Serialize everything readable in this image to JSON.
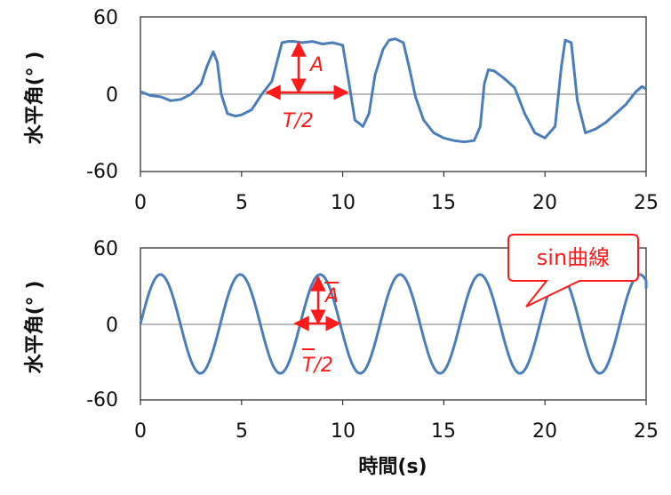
{
  "chart_data": [
    {
      "type": "line",
      "series_color": "#4a7ebb",
      "ylabel": "水平角(° )",
      "xlim": [
        0,
        25
      ],
      "ylim": [
        -60,
        60
      ],
      "xticks": [
        "0",
        "5",
        "10",
        "15",
        "20",
        "25"
      ],
      "yticks": [
        "60",
        "0",
        "-60"
      ],
      "annotation_color": "#ff1a1a",
      "annotations": {
        "amplitude": "A",
        "half_period": "T/2"
      },
      "series": [
        {
          "x": [
            0,
            0.5,
            1,
            1.5,
            2,
            2.5,
            3,
            3.3,
            3.6,
            3.8,
            4,
            4.3,
            4.7,
            5,
            5.5,
            6,
            6.5,
            7,
            7.3,
            7.6,
            8,
            8.5,
            9,
            9.5,
            10,
            10.3,
            10.6,
            11,
            11.3,
            11.6,
            12,
            12.3,
            12.6,
            13,
            13.3,
            13.6,
            14,
            14.5,
            15,
            15.5,
            16,
            16.5,
            16.8,
            17,
            17.2,
            17.5,
            18,
            18.5,
            19,
            19.5,
            20,
            20.5,
            20.8,
            21,
            21.3,
            21.6,
            22,
            22.5,
            23,
            23.5,
            24,
            24.5,
            24.8,
            25
          ],
          "y": [
            2,
            -1,
            -2,
            -5,
            -4,
            0,
            8,
            22,
            33,
            25,
            0,
            -15,
            -17,
            -16,
            -12,
            0,
            10,
            40,
            41,
            41,
            40,
            41,
            39,
            40,
            38,
            10,
            -20,
            -25,
            -15,
            15,
            35,
            42,
            43,
            40,
            20,
            -2,
            -20,
            -30,
            -34,
            -36,
            -37,
            -36,
            -25,
            8,
            19,
            18,
            12,
            5,
            -15,
            -30,
            -34,
            -25,
            20,
            42,
            40,
            -5,
            -30,
            -27,
            -22,
            -15,
            -8,
            2,
            6,
            4
          ]
        }
      ]
    },
    {
      "type": "line",
      "series_color": "#4a7ebb",
      "ylabel": "水平角(° )",
      "xlabel": "時間(s)",
      "xlim": [
        0,
        25
      ],
      "ylim": [
        -60,
        60
      ],
      "xticks": [
        "0",
        "5",
        "10",
        "15",
        "20",
        "25"
      ],
      "yticks": [
        "60",
        "0",
        "-60"
      ],
      "annotation_color": "#ff1a1a",
      "annotations": {
        "amplitude": "A",
        "half_period": "T/2"
      },
      "callout": "sin曲線",
      "series": [
        {
          "function": "sine",
          "amplitude": 39,
          "period": 3.95,
          "x_end": 25,
          "tail_value": 28
        }
      ]
    }
  ]
}
